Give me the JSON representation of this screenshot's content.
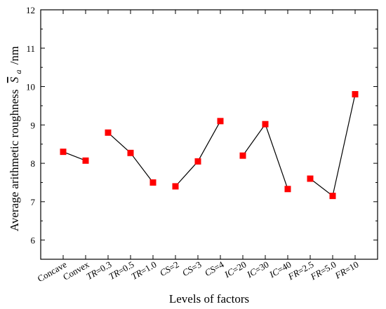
{
  "chart_data": {
    "type": "line",
    "xlabel": "Levels of factors",
    "ylabel": "Average arithmetic roughness",
    "ylabel_symbol": "S",
    "ylabel_symbol_sub": "a",
    "ylabel_unit": "/nm",
    "ylim": [
      5.5,
      12
    ],
    "yticks": [
      6,
      7,
      8,
      9,
      10,
      11,
      12
    ],
    "grid": false,
    "marker": "square",
    "marker_color": "#ff0000",
    "line_color": "#000000",
    "categories": [
      {
        "prefix": "Concave",
        "rest": ""
      },
      {
        "prefix": "Convex",
        "rest": ""
      },
      {
        "prefix": "TR",
        "rest": "=0.3"
      },
      {
        "prefix": "TR",
        "rest": "=0.5"
      },
      {
        "prefix": "TR",
        "rest": "=1.0"
      },
      {
        "prefix": "CS",
        "rest": "=2"
      },
      {
        "prefix": "CS",
        "rest": "=3"
      },
      {
        "prefix": "CS",
        "rest": "=4"
      },
      {
        "prefix": "IC",
        "rest": "=20"
      },
      {
        "prefix": "IC",
        "rest": "=30"
      },
      {
        "prefix": "IC",
        "rest": "=40"
      },
      {
        "prefix": "FR",
        "rest": "=2.5"
      },
      {
        "prefix": "FR",
        "rest": "=5.0"
      },
      {
        "prefix": "FR",
        "rest": "=10"
      }
    ],
    "groups": [
      {
        "values": [
          8.3,
          8.07
        ]
      },
      {
        "values": [
          8.8,
          8.27,
          7.5
        ]
      },
      {
        "values": [
          7.4,
          8.05,
          9.1
        ]
      },
      {
        "values": [
          8.2,
          9.02,
          7.33
        ]
      },
      {
        "values": [
          7.6,
          7.15,
          9.8
        ]
      }
    ]
  }
}
